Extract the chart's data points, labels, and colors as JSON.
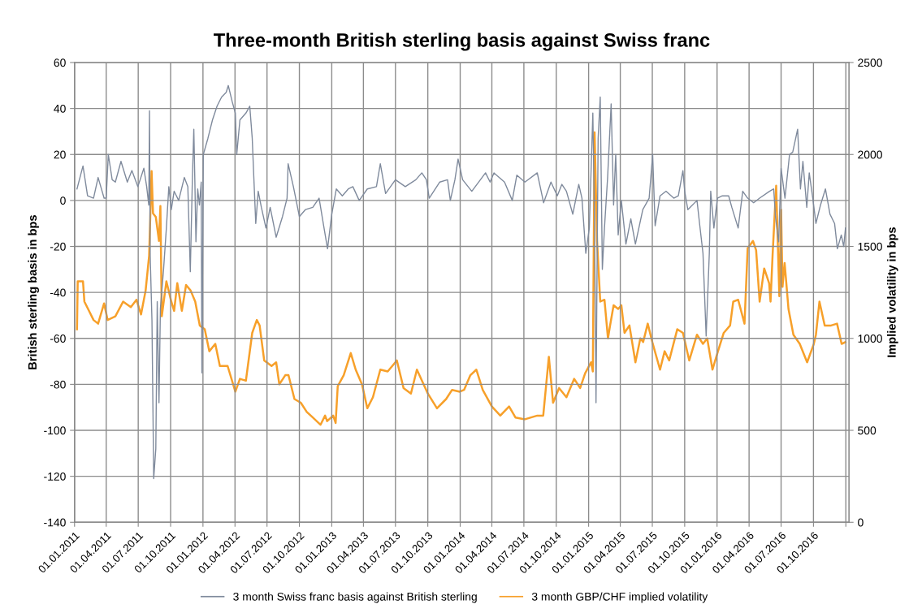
{
  "chart_data": {
    "type": "line",
    "title": "Three-month British sterling basis against Swiss franc",
    "ylabel": "British sterling basis in bps",
    "y2label": "Implied volatility in bps",
    "xlim": [
      "2011-01-01",
      "2017-01-10"
    ],
    "xticks": [
      {
        "value": "2011-01-01",
        "label": "01.01.2011"
      },
      {
        "value": "2011-04-01",
        "label": "01.04.2011"
      },
      {
        "value": "2011-07-01",
        "label": "01.07.2011"
      },
      {
        "value": "2011-10-01",
        "label": "01.10.2011"
      },
      {
        "value": "2012-01-01",
        "label": "01.01.2012"
      },
      {
        "value": "2012-04-01",
        "label": "01.04.2012"
      },
      {
        "value": "2012-07-01",
        "label": "01.07.2012"
      },
      {
        "value": "2012-10-01",
        "label": "01.10.2012"
      },
      {
        "value": "2013-01-01",
        "label": "01.01.2013"
      },
      {
        "value": "2013-04-01",
        "label": "01.04.2013"
      },
      {
        "value": "2013-07-01",
        "label": "01.07.2013"
      },
      {
        "value": "2013-10-01",
        "label": "01.10.2013"
      },
      {
        "value": "2014-01-01",
        "label": "01.01.2014"
      },
      {
        "value": "2014-04-01",
        "label": "01.04.2014"
      },
      {
        "value": "2014-07-01",
        "label": "01.07.2014"
      },
      {
        "value": "2014-10-01",
        "label": "01.10.2014"
      },
      {
        "value": "2015-01-01",
        "label": "01.01.2015"
      },
      {
        "value": "2015-04-01",
        "label": "01.04.2015"
      },
      {
        "value": "2015-07-01",
        "label": "01.07.2015"
      },
      {
        "value": "2015-10-01",
        "label": "01.10.2015"
      },
      {
        "value": "2016-01-01",
        "label": "01.01.2016"
      },
      {
        "value": "2016-04-01",
        "label": "01.04.2016"
      },
      {
        "value": "2016-07-01",
        "label": "01.07.2016"
      },
      {
        "value": "2016-10-01",
        "label": "01.10.2016"
      },
      {
        "value": "2017-01-01",
        "label": null
      }
    ],
    "ylim": [
      -140,
      60
    ],
    "yticks": [
      -140,
      -120,
      -100,
      -80,
      -60,
      -40,
      -20,
      0,
      20,
      40,
      60
    ],
    "y2lim": [
      0,
      2500
    ],
    "y2ticks": [
      0,
      500,
      1000,
      1500,
      2000,
      2500
    ],
    "grid": true,
    "legend": "bottom",
    "series": [
      {
        "name": "3 month Swiss franc basis against British sterling",
        "color": "#7f8a9c",
        "x": [
          "2011-01-08",
          "2011-01-25",
          "2011-02-07",
          "2011-02-24",
          "2011-03-09",
          "2011-03-26",
          "2011-04-01",
          "2011-04-07",
          "2011-04-18",
          "2011-04-27",
          "2011-05-13",
          "2011-05-31",
          "2011-06-13",
          "2011-06-30",
          "2011-07-17",
          "2011-07-25",
          "2011-07-31",
          "2011-08-02",
          "2011-08-04",
          "2011-08-09",
          "2011-08-14",
          "2011-08-20",
          "2011-08-24",
          "2011-08-29",
          "2011-09-02",
          "2011-09-11",
          "2011-09-19",
          "2011-09-26",
          "2011-10-03",
          "2011-10-11",
          "2011-10-24",
          "2011-11-09",
          "2011-11-19",
          "2011-11-26",
          "2011-12-02",
          "2011-12-06",
          "2011-12-09",
          "2011-12-12",
          "2011-12-17",
          "2011-12-22",
          "2011-12-27",
          "2011-12-29",
          "2012-01-02",
          "2012-01-15",
          "2012-01-28",
          "2012-02-10",
          "2012-02-23",
          "2012-03-07",
          "2012-03-13",
          "2012-03-24",
          "2012-04-02",
          "2012-04-06",
          "2012-04-15",
          "2012-05-02",
          "2012-05-13",
          "2012-05-20",
          "2012-05-24",
          "2012-05-30",
          "2012-06-06",
          "2012-06-15",
          "2012-06-28",
          "2012-07-10",
          "2012-07-27",
          "2012-08-14",
          "2012-08-27",
          "2012-08-30",
          "2012-09-14",
          "2012-10-01",
          "2012-10-18",
          "2012-11-08",
          "2012-11-26",
          "2012-12-09",
          "2012-12-20",
          "2013-01-01",
          "2013-01-14",
          "2013-01-31",
          "2013-02-17",
          "2013-03-02",
          "2013-03-20",
          "2013-04-12",
          "2013-05-08",
          "2013-05-19",
          "2013-06-03",
          "2013-07-01",
          "2013-07-29",
          "2013-08-28",
          "2013-09-14",
          "2013-09-27",
          "2013-10-05",
          "2013-11-04",
          "2013-11-26",
          "2013-12-04",
          "2013-12-17",
          "2013-12-26",
          "2014-01-08",
          "2014-02-03",
          "2014-03-14",
          "2014-03-27",
          "2014-04-07",
          "2014-05-07",
          "2014-05-29",
          "2014-06-11",
          "2014-07-04",
          "2014-08-08",
          "2014-08-26",
          "2014-09-16",
          "2014-10-04",
          "2014-10-17",
          "2014-10-30",
          "2014-11-17",
          "2014-12-04",
          "2014-12-13",
          "2014-12-24",
          "2015-01-03",
          "2015-01-13",
          "2015-01-18",
          "2015-01-22",
          "2015-01-28",
          "2015-02-03",
          "2015-02-09",
          "2015-02-15",
          "2015-02-24",
          "2015-03-06",
          "2015-03-13",
          "2015-03-19",
          "2015-03-26",
          "2015-04-04",
          "2015-04-17",
          "2015-05-01",
          "2015-05-14",
          "2015-06-04",
          "2015-06-22",
          "2015-07-02",
          "2015-07-09",
          "2015-07-23",
          "2015-08-09",
          "2015-08-31",
          "2015-09-13",
          "2015-09-26",
          "2015-10-01",
          "2015-10-10",
          "2015-11-05",
          "2015-11-13",
          "2015-11-22",
          "2015-12-01",
          "2015-12-10",
          "2015-12-14",
          "2015-12-23",
          "2016-01-02",
          "2016-01-16",
          "2016-02-03",
          "2016-02-12",
          "2016-03-01",
          "2016-03-14",
          "2016-03-28",
          "2016-04-14",
          "2016-05-01",
          "2016-05-29",
          "2016-06-10",
          "2016-06-15",
          "2016-06-24",
          "2016-07-01",
          "2016-07-12",
          "2016-07-25",
          "2016-08-03",
          "2016-08-17",
          "2016-08-25",
          "2016-09-01",
          "2016-09-12",
          "2016-09-19",
          "2016-09-29",
          "2016-10-08",
          "2016-10-21",
          "2016-11-04",
          "2016-11-17",
          "2016-11-30",
          "2016-12-08",
          "2016-12-19",
          "2016-12-26",
          "2016-12-31"
        ],
        "values": [
          5,
          15,
          2,
          1,
          10,
          1,
          1,
          20,
          9,
          8,
          17,
          8,
          13,
          6,
          14,
          6,
          -2,
          39,
          -24,
          -52,
          -121,
          -108,
          -44,
          -88,
          -47,
          -30,
          -12,
          6,
          -4,
          4,
          0,
          10,
          6,
          -31,
          10,
          31,
          8,
          -18,
          5,
          -2,
          8,
          -75,
          20,
          27,
          35,
          41,
          45,
          47,
          50,
          43,
          38,
          20,
          35,
          38,
          41,
          27,
          12,
          -10,
          4,
          -3,
          -12,
          -3,
          -16,
          -7,
          1,
          16,
          6,
          -7,
          -4,
          -3,
          1,
          -11,
          -21,
          -6,
          5,
          2,
          5,
          6,
          0,
          5,
          6,
          16,
          3,
          9,
          6,
          9,
          12,
          9,
          1,
          8,
          9,
          0,
          9,
          18,
          9,
          4,
          12,
          8,
          12,
          8,
          0,
          11,
          8,
          12,
          -1,
          8,
          2,
          7,
          4,
          -6,
          7,
          1,
          -23,
          -12,
          38,
          -12,
          -88,
          27,
          45,
          -30,
          -12,
          10,
          42,
          -2,
          20,
          -15,
          0,
          -19,
          -8,
          -19,
          -4,
          1,
          20,
          -11,
          2,
          4,
          1,
          2,
          13,
          4,
          -4,
          0,
          -11,
          -23,
          -59,
          -23,
          4,
          -12,
          1,
          2,
          2,
          -3,
          -12,
          4,
          1,
          -1,
          1,
          4,
          5,
          -7,
          -18,
          14,
          1,
          20,
          21,
          31,
          5,
          17,
          -3,
          12,
          1,
          -10,
          -2,
          5,
          -6,
          -10,
          -21,
          -15,
          -20,
          -12
        ]
      },
      {
        "name": "3 month GBP/CHF implied volatility",
        "color": "#f7a02a",
        "axis": "y2",
        "x": [
          "2011-01-08",
          "2011-01-10",
          "2011-01-25",
          "2011-01-29",
          "2011-02-11",
          "2011-02-24",
          "2011-03-09",
          "2011-03-26",
          "2011-04-05",
          "2011-04-27",
          "2011-05-19",
          "2011-06-10",
          "2011-06-26",
          "2011-07-09",
          "2011-07-22",
          "2011-08-01",
          "2011-08-08",
          "2011-08-12",
          "2011-08-20",
          "2011-08-29",
          "2011-09-02",
          "2011-09-06",
          "2011-09-19",
          "2011-10-03",
          "2011-10-11",
          "2011-10-20",
          "2011-11-02",
          "2011-11-14",
          "2011-11-27",
          "2011-12-10",
          "2011-12-23",
          "2012-01-06",
          "2012-01-19",
          "2012-02-05",
          "2012-02-18",
          "2012-03-11",
          "2012-04-02",
          "2012-04-15",
          "2012-05-02",
          "2012-05-20",
          "2012-06-02",
          "2012-06-10",
          "2012-06-23",
          "2012-07-14",
          "2012-07-27",
          "2012-08-05",
          "2012-08-22",
          "2012-08-31",
          "2012-09-17",
          "2012-10-05",
          "2012-10-22",
          "2012-11-08",
          "2012-11-30",
          "2012-12-13",
          "2012-12-19",
          "2013-01-05",
          "2013-01-12",
          "2013-01-18",
          "2013-02-04",
          "2013-02-24",
          "2013-03-10",
          "2013-03-28",
          "2013-04-12",
          "2013-04-28",
          "2013-05-19",
          "2013-06-09",
          "2013-07-05",
          "2013-07-24",
          "2013-08-14",
          "2013-08-31",
          "2013-10-01",
          "2013-10-27",
          "2013-11-22",
          "2013-12-09",
          "2013-12-31",
          "2014-01-12",
          "2014-01-30",
          "2014-02-16",
          "2014-03-06",
          "2014-04-01",
          "2014-04-25",
          "2014-05-20",
          "2014-06-07",
          "2014-07-04",
          "2014-08-08",
          "2014-08-25",
          "2014-09-10",
          "2014-09-22",
          "2014-10-09",
          "2014-10-30",
          "2014-11-21",
          "2014-12-08",
          "2014-12-22",
          "2015-01-08",
          "2015-01-13",
          "2015-01-18",
          "2015-01-25",
          "2015-02-03",
          "2015-02-15",
          "2015-02-25",
          "2015-03-03",
          "2015-03-13",
          "2015-03-26",
          "2015-04-04",
          "2015-04-13",
          "2015-04-27",
          "2015-05-14",
          "2015-05-28",
          "2015-06-05",
          "2015-06-18",
          "2015-07-01",
          "2015-07-23",
          "2015-08-05",
          "2015-08-18",
          "2015-09-10",
          "2015-09-26",
          "2015-10-14",
          "2015-11-05",
          "2015-11-22",
          "2015-12-04",
          "2015-12-19",
          "2016-01-02",
          "2016-01-20",
          "2016-02-07",
          "2016-02-16",
          "2016-03-01",
          "2016-03-19",
          "2016-03-28",
          "2016-04-12",
          "2016-04-21",
          "2016-05-01",
          "2016-05-14",
          "2016-05-28",
          "2016-06-01",
          "2016-06-07",
          "2016-06-17",
          "2016-06-26",
          "2016-07-01",
          "2016-07-05",
          "2016-07-11",
          "2016-07-22",
          "2016-08-05",
          "2016-08-23",
          "2016-09-13",
          "2016-10-02",
          "2016-10-08",
          "2016-10-18",
          "2016-11-02",
          "2016-11-20",
          "2016-12-07",
          "2016-12-20",
          "2016-12-31"
        ],
        "values": [
          1050,
          1310,
          1310,
          1200,
          1150,
          1100,
          1080,
          1190,
          1100,
          1120,
          1200,
          1170,
          1210,
          1130,
          1260,
          1450,
          1910,
          1680,
          1660,
          1530,
          1720,
          1120,
          1310,
          1200,
          1150,
          1300,
          1150,
          1290,
          1260,
          1200,
          1070,
          1050,
          930,
          970,
          850,
          850,
          710,
          780,
          770,
          1030,
          1100,
          1070,
          880,
          850,
          870,
          750,
          800,
          800,
          670,
          650,
          600,
          570,
          530,
          580,
          550,
          580,
          540,
          740,
          800,
          920,
          830,
          750,
          620,
          680,
          830,
          820,
          880,
          730,
          700,
          830,
          700,
          620,
          670,
          720,
          710,
          720,
          800,
          830,
          720,
          630,
          580,
          630,
          570,
          560,
          580,
          580,
          900,
          650,
          730,
          680,
          780,
          730,
          810,
          870,
          820,
          2120,
          1530,
          1200,
          1210,
          1000,
          1070,
          1180,
          1160,
          1180,
          1030,
          1070,
          870,
          1000,
          980,
          1080,
          980,
          830,
          930,
          880,
          1050,
          1030,
          880,
          1020,
          970,
          1000,
          830,
          920,
          1030,
          1070,
          1200,
          1210,
          1080,
          1490,
          1530,
          1480,
          1200,
          1380,
          1300,
          1200,
          1460,
          1830,
          1230,
          1700,
          1280,
          1410,
          1160,
          1020,
          970,
          870,
          970,
          1020,
          1200,
          1070,
          1070,
          1080,
          970,
          980
        ]
      }
    ]
  }
}
